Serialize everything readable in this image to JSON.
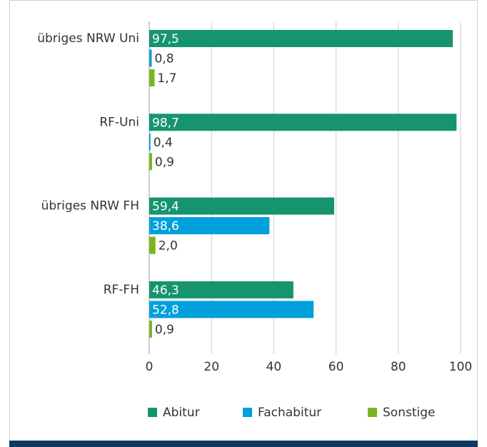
{
  "chart_data": {
    "type": "hbar",
    "categories": [
      "übriges NRW Uni",
      "RF-Uni",
      "übriges NRW FH",
      "RF-FH"
    ],
    "series": [
      {
        "name": "Abitur",
        "color": "#15946f",
        "values": [
          97.5,
          98.7,
          59.4,
          46.3
        ],
        "value_labels": [
          "97,5",
          "98,7",
          "59,4",
          "46,3"
        ]
      },
      {
        "name": "Fachabitur",
        "color": "#00a0dc",
        "values": [
          0.8,
          0.4,
          38.6,
          52.8
        ],
        "value_labels": [
          "0,8",
          "0,4",
          "38,6",
          "52,8"
        ]
      },
      {
        "name": "Sonstige",
        "color": "#7ab51d",
        "values": [
          1.7,
          0.9,
          2.0,
          0.9
        ],
        "value_labels": [
          "1,7",
          "0,9",
          "2,0",
          "0,9"
        ]
      }
    ],
    "xlim": [
      0,
      100
    ],
    "xticks": [
      0,
      20,
      40,
      60,
      80,
      100
    ],
    "grid": true
  }
}
